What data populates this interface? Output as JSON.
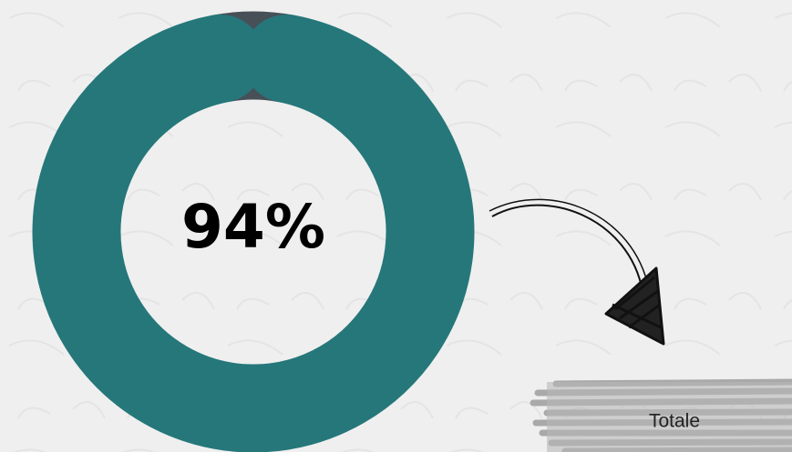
{
  "chart_data": {
    "type": "donut",
    "values": [
      94,
      6
    ],
    "value_labels": [
      "94%",
      null
    ],
    "colors": [
      "#25777a",
      "#474f57"
    ],
    "annotation": "Totale"
  }
}
